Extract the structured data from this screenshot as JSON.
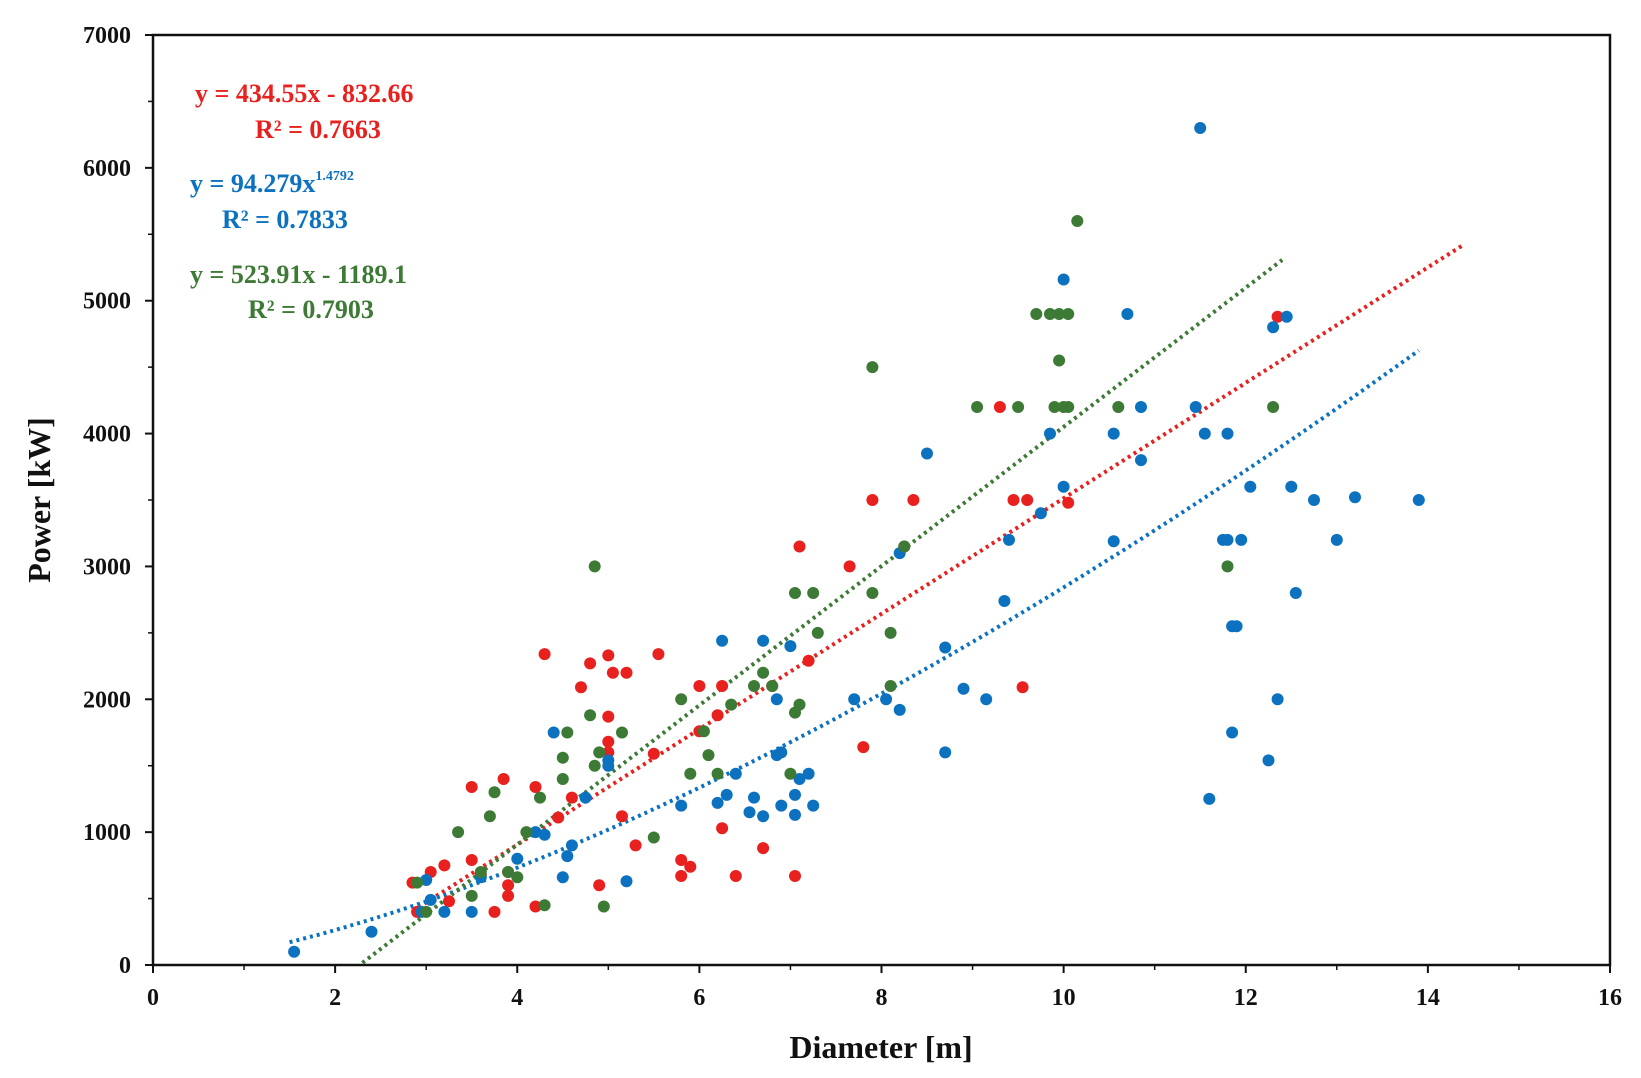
{
  "chart_data": {
    "type": "scatter",
    "title": "",
    "xlabel": "Diameter [m]",
    "ylabel": "Power [kW]",
    "xlim": [
      0,
      16
    ],
    "ylim": [
      0,
      7000
    ],
    "xticks": [
      0,
      2,
      4,
      6,
      8,
      10,
      12,
      14,
      16
    ],
    "yticks": [
      0,
      1000,
      2000,
      3000,
      4000,
      5000,
      6000,
      7000
    ],
    "grid": false,
    "colors": {
      "red": "#e8201e",
      "blue": "#0c72c0",
      "green": "#3d7a35"
    },
    "series": [
      {
        "name": "red",
        "color": "#e8201e",
        "equation": "y = 434.55x - 832.66",
        "r2": "R² = 0.7663",
        "trend": {
          "type": "linear",
          "slope": 434.55,
          "intercept": -832.66,
          "x_range": [
            2.85,
            14.4
          ]
        },
        "points": [
          [
            2.85,
            620
          ],
          [
            2.9,
            400
          ],
          [
            3.05,
            700
          ],
          [
            3.2,
            750
          ],
          [
            3.25,
            480
          ],
          [
            3.5,
            1340
          ],
          [
            3.5,
            790
          ],
          [
            3.6,
            680
          ],
          [
            3.75,
            400
          ],
          [
            3.85,
            1400
          ],
          [
            3.9,
            700
          ],
          [
            3.9,
            600
          ],
          [
            3.9,
            520
          ],
          [
            4.2,
            440
          ],
          [
            4.2,
            1340
          ],
          [
            4.3,
            2340
          ],
          [
            4.45,
            1110
          ],
          [
            4.6,
            1260
          ],
          [
            4.7,
            2090
          ],
          [
            4.8,
            2270
          ],
          [
            4.9,
            600
          ],
          [
            5.0,
            2330
          ],
          [
            5.0,
            1680
          ],
          [
            5.0,
            1600
          ],
          [
            5.0,
            1870
          ],
          [
            5.05,
            2200
          ],
          [
            5.15,
            1120
          ],
          [
            5.2,
            2200
          ],
          [
            5.3,
            900
          ],
          [
            5.5,
            1590
          ],
          [
            5.55,
            2340
          ],
          [
            5.8,
            790
          ],
          [
            5.8,
            670
          ],
          [
            5.9,
            740
          ],
          [
            6.0,
            1760
          ],
          [
            6.0,
            2100
          ],
          [
            6.2,
            1880
          ],
          [
            6.25,
            2100
          ],
          [
            6.25,
            1030
          ],
          [
            6.4,
            670
          ],
          [
            6.7,
            880
          ],
          [
            6.8,
            2100
          ],
          [
            7.05,
            670
          ],
          [
            7.1,
            3150
          ],
          [
            7.2,
            2290
          ],
          [
            7.65,
            3000
          ],
          [
            7.8,
            1640
          ],
          [
            7.9,
            3500
          ],
          [
            8.25,
            3150
          ],
          [
            8.35,
            3500
          ],
          [
            9.3,
            4200
          ],
          [
            9.45,
            3500
          ],
          [
            9.6,
            3500
          ],
          [
            9.55,
            2090
          ],
          [
            10.05,
            3480
          ],
          [
            12.35,
            4880
          ]
        ]
      },
      {
        "name": "blue",
        "color": "#0c72c0",
        "equation": "y = 94.279x",
        "exponent": "1.4792",
        "r2": "R² = 0.7833",
        "trend": {
          "type": "power",
          "a": 94.279,
          "b": 1.4792,
          "x_range": [
            1.5,
            13.9
          ]
        },
        "points": [
          [
            1.55,
            100
          ],
          [
            2.4,
            250
          ],
          [
            2.95,
            400
          ],
          [
            3.0,
            640
          ],
          [
            3.05,
            490
          ],
          [
            3.2,
            400
          ],
          [
            3.5,
            400
          ],
          [
            3.6,
            660
          ],
          [
            4.0,
            800
          ],
          [
            4.2,
            1000
          ],
          [
            4.3,
            980
          ],
          [
            4.4,
            1750
          ],
          [
            4.5,
            660
          ],
          [
            4.55,
            820
          ],
          [
            4.6,
            900
          ],
          [
            4.75,
            1260
          ],
          [
            5.0,
            1500
          ],
          [
            5.0,
            1540
          ],
          [
            5.2,
            630
          ],
          [
            5.8,
            1200
          ],
          [
            6.2,
            1220
          ],
          [
            6.25,
            2440
          ],
          [
            6.3,
            1280
          ],
          [
            6.4,
            1440
          ],
          [
            6.55,
            1150
          ],
          [
            6.6,
            1260
          ],
          [
            6.7,
            2440
          ],
          [
            6.7,
            1120
          ],
          [
            6.85,
            2000
          ],
          [
            6.85,
            1580
          ],
          [
            6.9,
            1600
          ],
          [
            6.9,
            1200
          ],
          [
            7.0,
            2400
          ],
          [
            7.05,
            1130
          ],
          [
            7.05,
            1280
          ],
          [
            7.1,
            1400
          ],
          [
            7.2,
            1440
          ],
          [
            7.25,
            1200
          ],
          [
            7.7,
            2000
          ],
          [
            8.05,
            2000
          ],
          [
            8.2,
            1920
          ],
          [
            8.2,
            3100
          ],
          [
            8.5,
            3850
          ],
          [
            8.7,
            2390
          ],
          [
            8.7,
            1600
          ],
          [
            8.9,
            2080
          ],
          [
            9.15,
            2000
          ],
          [
            9.35,
            2740
          ],
          [
            9.4,
            3200
          ],
          [
            9.75,
            3400
          ],
          [
            9.85,
            4000
          ],
          [
            10.0,
            3600
          ],
          [
            10.0,
            5160
          ],
          [
            10.55,
            3190
          ],
          [
            10.55,
            4000
          ],
          [
            10.7,
            4900
          ],
          [
            10.85,
            4200
          ],
          [
            10.85,
            3800
          ],
          [
            11.45,
            4200
          ],
          [
            11.5,
            6300
          ],
          [
            11.55,
            4000
          ],
          [
            11.6,
            1250
          ],
          [
            11.75,
            3200
          ],
          [
            11.8,
            3200
          ],
          [
            11.8,
            4000
          ],
          [
            11.85,
            2550
          ],
          [
            11.85,
            1750
          ],
          [
            11.9,
            2550
          ],
          [
            11.95,
            3200
          ],
          [
            12.05,
            3600
          ],
          [
            12.25,
            1540
          ],
          [
            12.3,
            4800
          ],
          [
            12.35,
            2000
          ],
          [
            12.45,
            4880
          ],
          [
            12.5,
            3600
          ],
          [
            12.55,
            2800
          ],
          [
            12.75,
            3500
          ],
          [
            13.0,
            3200
          ],
          [
            13.2,
            3520
          ],
          [
            13.9,
            3500
          ]
        ]
      },
      {
        "name": "green",
        "color": "#3d7a35",
        "equation": "y = 523.91x - 1189.1",
        "r2": "R² = 0.7903",
        "trend": {
          "type": "linear",
          "slope": 523.91,
          "intercept": -1189.1,
          "x_range": [
            2.3,
            12.4
          ]
        },
        "points": [
          [
            2.9,
            620
          ],
          [
            3.0,
            400
          ],
          [
            3.35,
            1000
          ],
          [
            3.5,
            520
          ],
          [
            3.6,
            700
          ],
          [
            3.7,
            1120
          ],
          [
            3.75,
            1300
          ],
          [
            3.9,
            700
          ],
          [
            4.0,
            660
          ],
          [
            4.1,
            1000
          ],
          [
            4.25,
            1260
          ],
          [
            4.3,
            450
          ],
          [
            4.5,
            1400
          ],
          [
            4.5,
            1560
          ],
          [
            4.55,
            1750
          ],
          [
            4.8,
            1880
          ],
          [
            4.85,
            1500
          ],
          [
            4.85,
            3000
          ],
          [
            4.9,
            1600
          ],
          [
            4.95,
            440
          ],
          [
            5.15,
            1750
          ],
          [
            5.5,
            960
          ],
          [
            5.8,
            2000
          ],
          [
            5.9,
            1440
          ],
          [
            6.05,
            1760
          ],
          [
            6.1,
            1580
          ],
          [
            6.2,
            1440
          ],
          [
            6.35,
            1960
          ],
          [
            6.6,
            2100
          ],
          [
            6.7,
            2200
          ],
          [
            6.8,
            2100
          ],
          [
            7.0,
            1440
          ],
          [
            7.05,
            1900
          ],
          [
            7.05,
            2800
          ],
          [
            7.1,
            1960
          ],
          [
            7.25,
            2800
          ],
          [
            7.3,
            2500
          ],
          [
            7.9,
            4500
          ],
          [
            7.9,
            2800
          ],
          [
            8.1,
            2500
          ],
          [
            8.1,
            2100
          ],
          [
            8.25,
            3150
          ],
          [
            9.05,
            4200
          ],
          [
            9.5,
            4200
          ],
          [
            9.7,
            4900
          ],
          [
            9.85,
            4900
          ],
          [
            9.9,
            4200
          ],
          [
            9.95,
            4900
          ],
          [
            9.95,
            4550
          ],
          [
            10.0,
            4200
          ],
          [
            10.05,
            4900
          ],
          [
            10.05,
            4200
          ],
          [
            10.15,
            5600
          ],
          [
            10.6,
            4200
          ],
          [
            11.8,
            3000
          ],
          [
            12.3,
            4200
          ]
        ]
      }
    ]
  }
}
